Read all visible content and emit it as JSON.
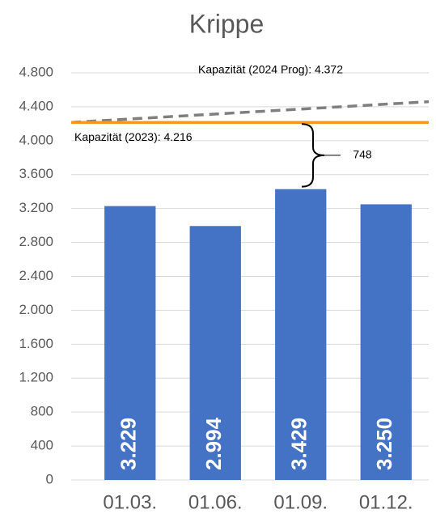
{
  "chart_data": {
    "type": "bar",
    "title": "Krippe",
    "categories": [
      "01.03.",
      "01.06.",
      "01.09.",
      "01.12."
    ],
    "values": [
      3229,
      2994,
      3429,
      3250
    ],
    "value_labels": [
      "3.229",
      "2.994",
      "3.429",
      "3.250"
    ],
    "color": "#4472c4",
    "ylim": [
      0,
      4800
    ],
    "yticks": [
      0,
      {
        "value": 400,
        "label": "400"
      },
      {
        "value": 800,
        "label": "800"
      },
      {
        "value": 1200,
        "label": "1.200"
      },
      {
        "value": 1600,
        "label": "1.600"
      },
      {
        "value": 2000,
        "label": "2.000"
      },
      {
        "value": 2400,
        "label": "2.400"
      },
      {
        "value": 2800,
        "label": "2.800"
      },
      {
        "value": 3200,
        "label": "3.200"
      },
      {
        "value": 3600,
        "label": "3.600"
      },
      {
        "value": 4000,
        "label": "4.000"
      },
      {
        "value": 4400,
        "label": "4.400"
      },
      {
        "value": 4800,
        "label": "4.800"
      }
    ],
    "grid": true,
    "capacity_line": {
      "label": "Kapazität (2023): 4.216",
      "value": 4216,
      "color": "#f39a1e"
    },
    "forecast_line": {
      "label": "Kapazität (2024 Prog): 4.372",
      "values": [
        4216,
        4460
      ],
      "color": "#7f7f7f",
      "dashed": true
    },
    "gap_annotation": {
      "label": "748"
    }
  }
}
